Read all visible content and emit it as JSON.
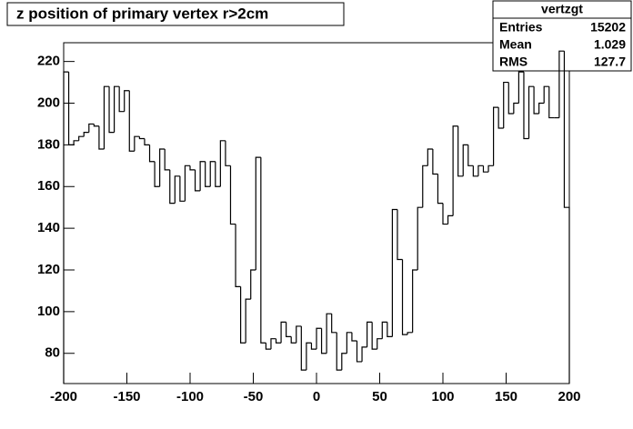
{
  "chart_data": {
    "type": "histogram",
    "title": "z position of primary vertex r>2cm",
    "bins": [
      -200,
      -196,
      -192,
      -188,
      -184,
      -180,
      -176,
      -172,
      -168,
      -164,
      -160,
      -156,
      -152,
      -148,
      -144,
      -140,
      -136,
      -132,
      -128,
      -124,
      -120,
      -116,
      -112,
      -108,
      -104,
      -100,
      -96,
      -92,
      -88,
      -84,
      -80,
      -76,
      -72,
      -68,
      -64,
      -60,
      -56,
      -52,
      -48,
      -44,
      -40,
      -36,
      -32,
      -28,
      -24,
      -20,
      -16,
      -12,
      -8,
      -4,
      0,
      4,
      8,
      12,
      16,
      20,
      24,
      28,
      32,
      36,
      40,
      44,
      48,
      52,
      56,
      60,
      64,
      68,
      72,
      76,
      80,
      84,
      88,
      92,
      96,
      100,
      104,
      108,
      112,
      116,
      120,
      124,
      128,
      132,
      136,
      140,
      144,
      148,
      152,
      156,
      160,
      164,
      168,
      172,
      176,
      180,
      184,
      188,
      192,
      196,
      200
    ],
    "counts": [
      215,
      180,
      182,
      184,
      186,
      190,
      189,
      178,
      208,
      186,
      208,
      196,
      206,
      177,
      184,
      183,
      180,
      172,
      160,
      178,
      168,
      152,
      165,
      153,
      170,
      168,
      158,
      172,
      160,
      172,
      160,
      182,
      170,
      142,
      112,
      85,
      106,
      120,
      174,
      85,
      82,
      87,
      85,
      95,
      88,
      85,
      93,
      72,
      85,
      82,
      92,
      80,
      99,
      90,
      72,
      80,
      90,
      86,
      76,
      83,
      95,
      82,
      87,
      95,
      88,
      149,
      125,
      89,
      90,
      120,
      150,
      170,
      178,
      166,
      152,
      142,
      146,
      189,
      165,
      180,
      170,
      165,
      170,
      167,
      170,
      198,
      188,
      210,
      195,
      200,
      215,
      183,
      208,
      195,
      200,
      208,
      193,
      193,
      225,
      150
    ],
    "color": "#000000",
    "xlim": [
      -200,
      200
    ],
    "ylim": [
      65.5,
      229
    ],
    "xticks": [
      -200,
      -150,
      -100,
      -50,
      0,
      50,
      100,
      150,
      200
    ],
    "yticks": [
      80,
      100,
      120,
      140,
      160,
      180,
      200,
      220
    ],
    "stats": {
      "title": "vertzgt",
      "rows": [
        {
          "label": "Entries",
          "value": 15202
        },
        {
          "label": "Mean",
          "value": 1.029
        },
        {
          "label": "RMS",
          "value": 127.7
        }
      ]
    }
  }
}
